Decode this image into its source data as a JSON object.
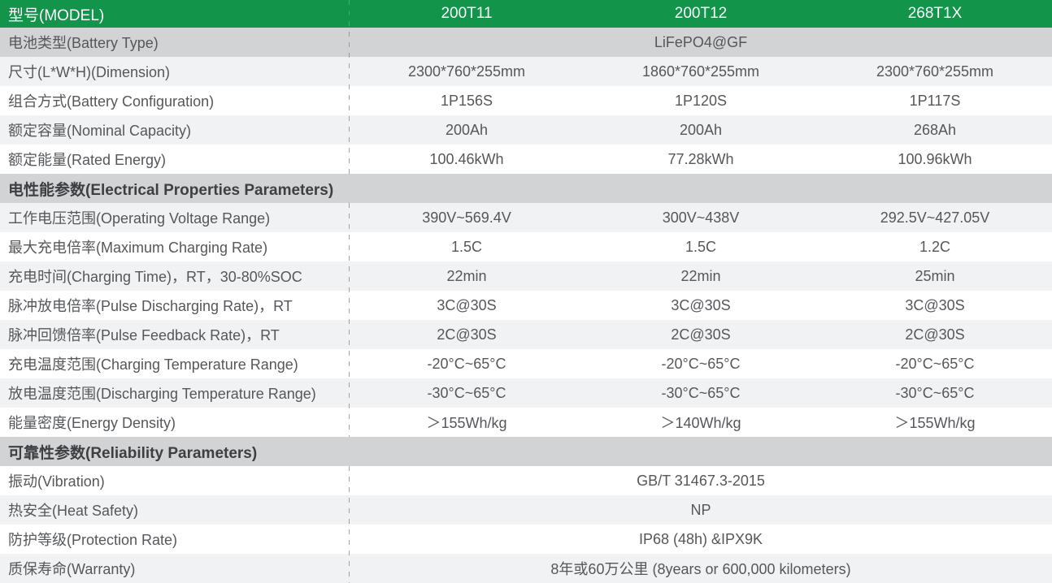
{
  "header": {
    "label": "型号(MODEL)",
    "models": [
      "200T11",
      "200T12",
      "268T1X"
    ]
  },
  "rows": [
    {
      "type": "merged",
      "label": "电池类型(Battery Type)",
      "value": "LiFePO4@GF"
    },
    {
      "type": "data",
      "label": "尺寸(L*W*H)(Dimension)",
      "values": [
        "2300*760*255mm",
        "1860*760*255mm",
        "2300*760*255mm"
      ]
    },
    {
      "type": "data",
      "label": "组合方式(Battery Configuration)",
      "values": [
        "1P156S",
        "1P120S",
        "1P117S"
      ]
    },
    {
      "type": "data",
      "label": "额定容量(Nominal Capacity)",
      "values": [
        "200Ah",
        "200Ah",
        "268Ah"
      ]
    },
    {
      "type": "data",
      "label": "额定能量(Rated Energy)",
      "values": [
        "100.46kWh",
        "77.28kWh",
        "100.96kWh"
      ]
    },
    {
      "type": "section",
      "label": "电性能参数(Electrical Properties Parameters)"
    },
    {
      "type": "data",
      "label": "工作电压范围(Operating Voltage Range)",
      "values": [
        "390V~569.4V",
        "300V~438V",
        "292.5V~427.05V"
      ]
    },
    {
      "type": "data",
      "label": "最大充电倍率(Maximum Charging Rate)",
      "values": [
        "1.5C",
        "1.5C",
        "1.2C"
      ]
    },
    {
      "type": "data",
      "label": "充电时间(Charging Time)，RT，30-80%SOC",
      "values": [
        "22min",
        "22min",
        "25min"
      ]
    },
    {
      "type": "data",
      "label": "脉冲放电倍率(Pulse Discharging Rate)，RT",
      "values": [
        "3C@30S",
        "3C@30S",
        "3C@30S"
      ]
    },
    {
      "type": "data",
      "label": "脉冲回馈倍率(Pulse Feedback Rate)，RT",
      "values": [
        "2C@30S",
        "2C@30S",
        "2C@30S"
      ]
    },
    {
      "type": "data",
      "label": "充电温度范围(Charging Temperature Range)",
      "values": [
        "-20°C~65°C",
        "-20°C~65°C",
        "-20°C~65°C"
      ]
    },
    {
      "type": "data",
      "label": "放电温度范围(Discharging Temperature Range)",
      "values": [
        "-30°C~65°C",
        "-30°C~65°C",
        "-30°C~65°C"
      ]
    },
    {
      "type": "data",
      "label": "能量密度(Energy Density)",
      "values": [
        "＞155Wh/kg",
        "＞140Wh/kg",
        "＞155Wh/kg"
      ]
    },
    {
      "type": "section",
      "label": "可靠性参数(Reliability Parameters)"
    },
    {
      "type": "merged",
      "label": "振动(Vibration)",
      "value": "GB/T 31467.3-2015"
    },
    {
      "type": "merged",
      "label": "热安全(Heat Safety)",
      "value": "NP"
    },
    {
      "type": "merged",
      "label": "防护等级(Protection Rate)",
      "value": "IP68 (48h) &IPX9K"
    },
    {
      "type": "merged",
      "label": "质保寿命(Warranty)",
      "value": "8年或60万公里 (8years or 600,000 kilometers)"
    }
  ],
  "colors": {
    "header_green": "#12944a",
    "header_text": "#ffffff",
    "section_bg": "#d2d3d5",
    "merged_highlight_bg": "#d2d3d5",
    "row_light_bg": "#f1f2f4",
    "row_white_bg": "#ffffff",
    "body_text": "#55575a",
    "divider": "#8a8e93"
  }
}
